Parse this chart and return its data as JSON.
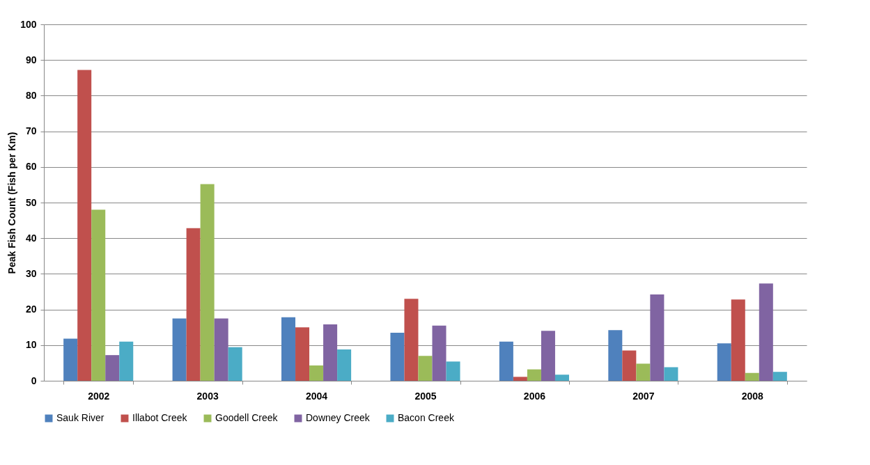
{
  "chart_data": {
    "type": "bar",
    "ylabel": "Peak Fish Count (Fish per Km)",
    "categories": [
      "2002",
      "2003",
      "2004",
      "2005",
      "2006",
      "2007",
      "2008"
    ],
    "series": [
      {
        "name": "Sauk River",
        "color": "#4f81bd",
        "values": [
          11.8,
          17.5,
          17.8,
          13.5,
          11,
          14.2,
          10.5
        ]
      },
      {
        "name": "Illabot Creek",
        "color": "#c0504d",
        "values": [
          87.2,
          42.8,
          15,
          23,
          1.1,
          8.5,
          22.8
        ]
      },
      {
        "name": "Goodell Creek",
        "color": "#9bbb59",
        "values": [
          48,
          55.2,
          4.3,
          7,
          3.2,
          4.8,
          2.2
        ]
      },
      {
        "name": "Downey Creek",
        "color": "#8064a2",
        "values": [
          7.2,
          17.5,
          15.8,
          15.5,
          14,
          24.2,
          27.3
        ]
      },
      {
        "name": "Bacon Creek",
        "color": "#4bacc6",
        "values": [
          11,
          9.4,
          8.8,
          5.4,
          1.7,
          3.8,
          2.5
        ]
      }
    ],
    "ylim": [
      0,
      100
    ],
    "yticks": [
      0,
      10,
      20,
      30,
      40,
      50,
      60,
      70,
      80,
      90,
      100
    ],
    "grid": "y",
    "legend": "bottom"
  }
}
